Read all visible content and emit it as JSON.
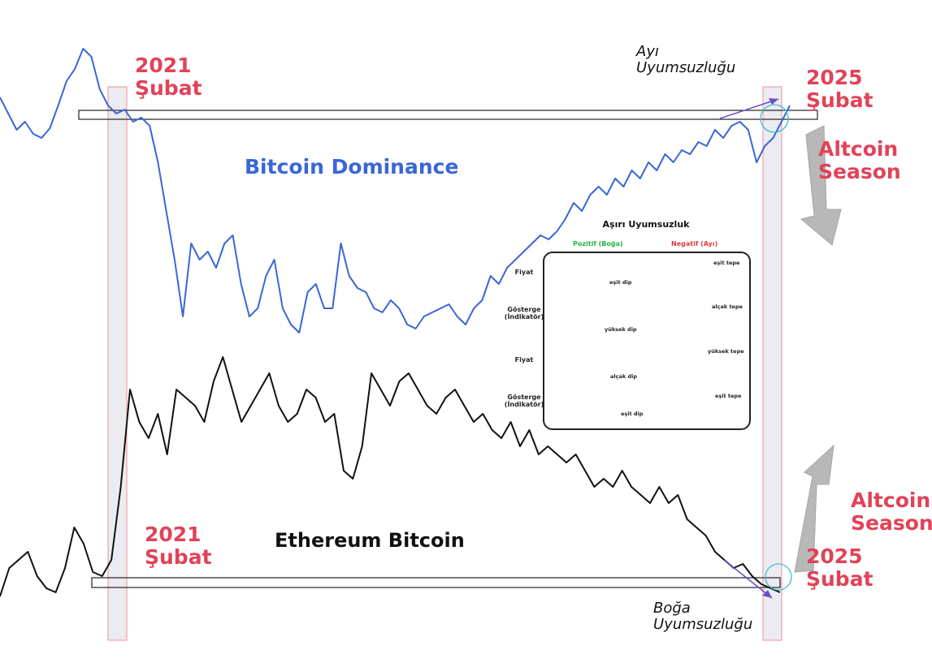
{
  "labels": {
    "btc_dom": "Bitcoin Dominance",
    "eth_btc": "Ethereum Bitcoin",
    "feb2021_top_year": "2021",
    "feb2021_top_month": "Şubat",
    "feb2021_bottom_year": "2021",
    "feb2021_bottom_month": "Şubat",
    "feb2025_top_year": "2025",
    "feb2025_top_month": "Şubat",
    "feb2025_bottom_year": "2025",
    "feb2025_bottom_month": "Şubat",
    "altseason_top_1": "Altcoin",
    "altseason_top_2": "Season",
    "altseason_bottom_1": "Altcoin",
    "altseason_bottom_2": "Season",
    "bear_div_1": "Ayı",
    "bear_div_2": "Uyumsuzluğu",
    "bull_div_1": "Boğa",
    "bull_div_2": "Uyumsuzluğu"
  },
  "inset": {
    "title": "Aşırı Uyumsuzluk",
    "positive": "Pozitif (Boğa)",
    "negative": "Negatif (Ayı)",
    "rows": [
      {
        "l1": "Fiyat",
        "l2": ""
      },
      {
        "l1": "Gösterge",
        "l2": "(İndikatör)"
      },
      {
        "l1": "Fiyat",
        "l2": ""
      },
      {
        "l1": "Gösterge",
        "l2": "(İndikatör)"
      }
    ],
    "notes": {
      "r1_left": "eşit dip",
      "r1_right": "eşit tepe",
      "r2_left": "yüksek dip",
      "r2_right": "alçak tepe",
      "r3_left": "alçak dip",
      "r3_right": "yüksek tepe",
      "r4_left": "eşit dip",
      "r4_right": "eşit tepe"
    },
    "colors": {
      "positive": "#22b04b",
      "negative": "#e03a3a"
    }
  },
  "chart_data": [
    {
      "type": "line",
      "title": "Bitcoin Dominance",
      "color": "#3a66d6",
      "y": [
        120,
        140,
        160,
        150,
        165,
        170,
        158,
        130,
        100,
        85,
        60,
        70,
        110,
        130,
        140,
        135,
        150,
        145,
        155,
        200,
        260,
        320,
        390,
        300,
        320,
        310,
        330,
        300,
        290,
        350,
        390,
        380,
        340,
        320,
        380,
        400,
        410,
        360,
        350,
        380,
        380,
        300,
        340,
        355,
        360,
        380,
        385,
        370,
        380,
        400,
        405,
        390,
        385,
        380,
        375,
        390,
        400,
        380,
        370,
        340,
        350,
        330,
        320,
        310,
        300,
        290,
        295,
        285,
        270,
        250,
        260,
        240,
        230,
        240,
        220,
        230,
        210,
        220,
        200,
        210,
        190,
        200,
        185,
        190,
        175,
        180,
        160,
        170,
        155,
        150,
        160,
        200,
        180,
        170,
        150,
        130
      ]
    },
    {
      "type": "line",
      "title": "Ethereum Bitcoin",
      "color": "#111111",
      "y": [
        735,
        700,
        690,
        680,
        710,
        725,
        730,
        700,
        650,
        670,
        705,
        710,
        690,
        600,
        480,
        520,
        540,
        510,
        560,
        480,
        490,
        500,
        520,
        470,
        440,
        480,
        520,
        500,
        480,
        460,
        500,
        520,
        510,
        480,
        490,
        520,
        510,
        580,
        590,
        550,
        460,
        480,
        500,
        470,
        460,
        480,
        500,
        510,
        490,
        480,
        500,
        520,
        510,
        530,
        540,
        520,
        550,
        530,
        560,
        550,
        560,
        570,
        560,
        580,
        600,
        590,
        600,
        580,
        600,
        610,
        620,
        600,
        620,
        610,
        640,
        650,
        660,
        680,
        690,
        700,
        695,
        710,
        720,
        725,
        730
      ]
    }
  ]
}
